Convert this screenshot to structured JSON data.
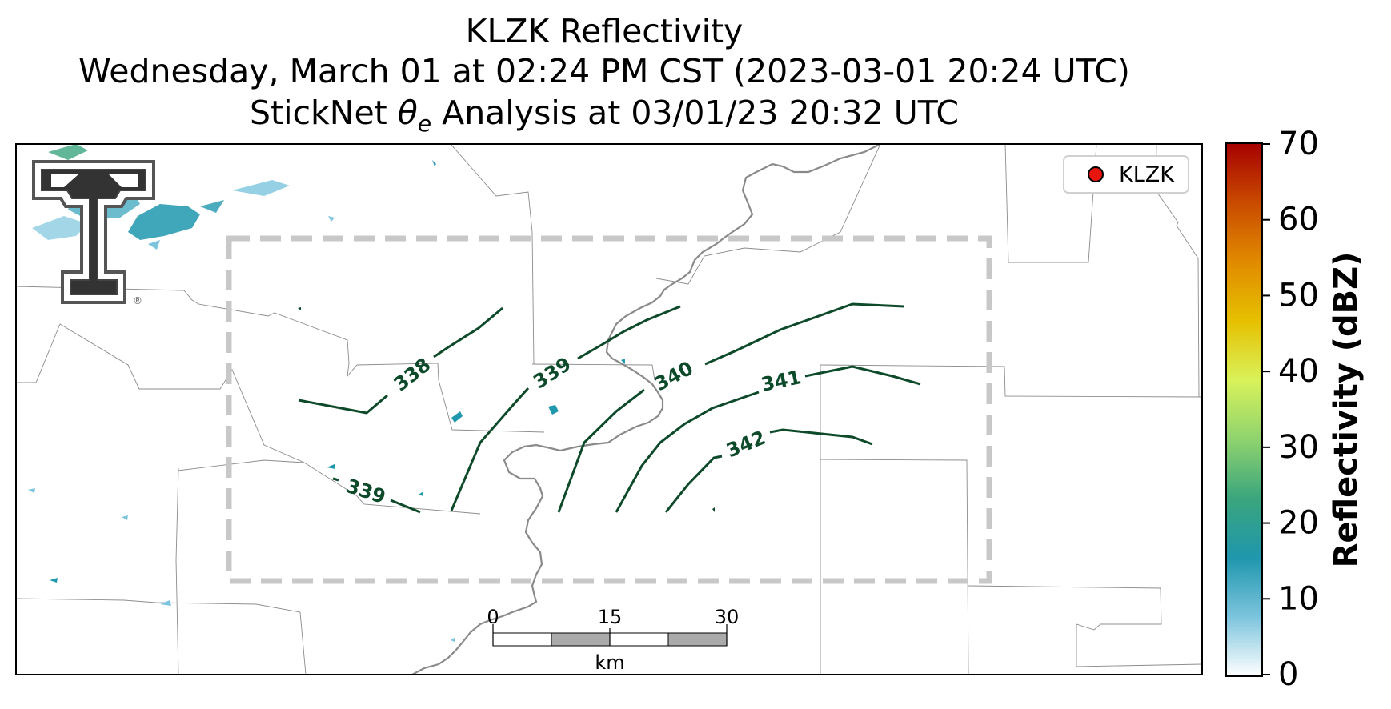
{
  "title": {
    "line1": "KLZK Reflectivity",
    "line2": "Wednesday, March 01 at 02:24 PM CST (2023-03-01 20:24 UTC)",
    "line3_prefix": "StickNet ",
    "line3_symbol": "θ",
    "line3_subscript": "e",
    "line3_suffix": " Analysis at 03/01/23 20:32 UTC"
  },
  "legend": {
    "label": "KLZK",
    "marker_color": "#e8140e"
  },
  "colorbar": {
    "label": "Reflectivity (dBZ)",
    "ticks": [
      "0",
      "10",
      "20",
      "30",
      "40",
      "50",
      "60",
      "70"
    ],
    "range": [
      0,
      70
    ],
    "colors": [
      "#ffffff",
      "#7cc4dd",
      "#1f97ad",
      "#3aa57d",
      "#8fd36e",
      "#d9f25a",
      "#e6c000",
      "#e08a00",
      "#c94a00",
      "#a60000"
    ]
  },
  "scalebar": {
    "ticks": [
      "0",
      "15",
      "30"
    ],
    "unit": "km"
  },
  "contours": [
    {
      "label": "338"
    },
    {
      "label": "339"
    },
    {
      "label": "339"
    },
    {
      "label": "340"
    },
    {
      "label": "341"
    },
    {
      "label": "342"
    }
  ],
  "contour_color": "#0d4a2a",
  "analysis_box_color": "#c8c8c8",
  "logo": {
    "name": "Texas Tech double-T",
    "registered": "®"
  }
}
